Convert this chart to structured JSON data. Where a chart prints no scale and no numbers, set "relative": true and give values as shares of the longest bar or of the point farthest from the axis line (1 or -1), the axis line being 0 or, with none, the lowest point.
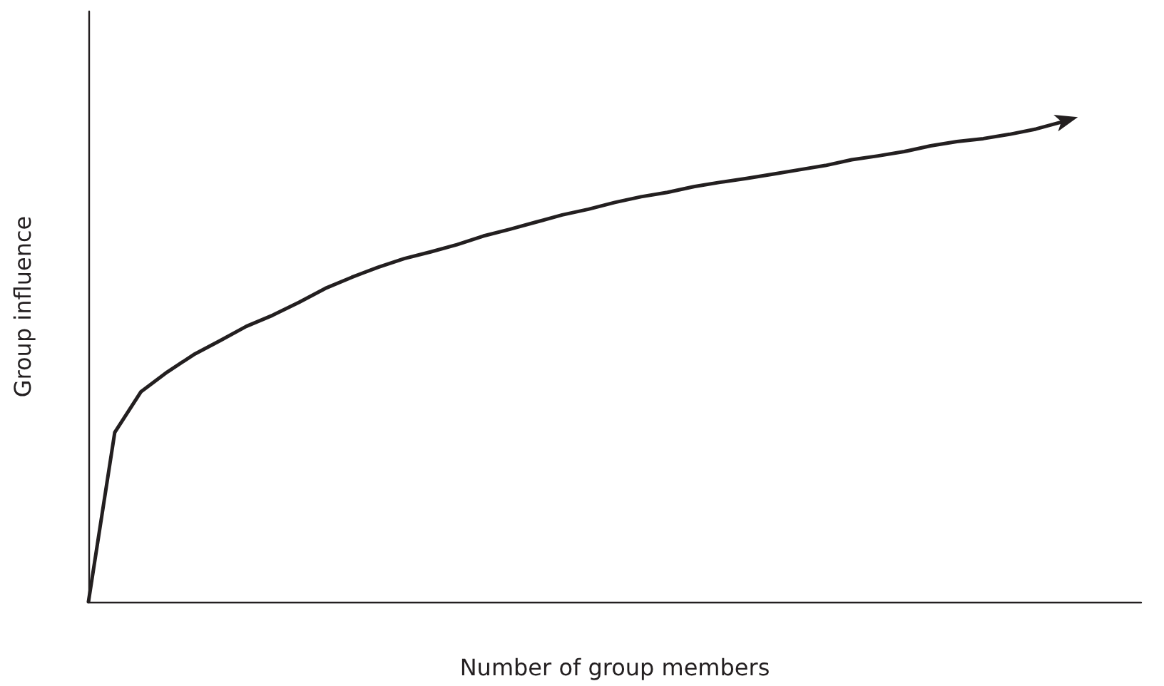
{
  "chart_data": {
    "type": "line",
    "xlabel": "Number of group members",
    "ylabel": "Group influence",
    "relative": true,
    "grid": false,
    "line_style": "solid",
    "categories": [
      null,
      null,
      null,
      null,
      null,
      null,
      null,
      null,
      null,
      null,
      null,
      null,
      null,
      null,
      null,
      null,
      null,
      null,
      null,
      null,
      null,
      null,
      null,
      null,
      null,
      null,
      null,
      null,
      null,
      null,
      null,
      null,
      null,
      null,
      null,
      null,
      null,
      null,
      null,
      null,
      null
    ],
    "series": [
      {
        "color": "#231f20",
        "values": [
          0,
          0.353,
          0.438,
          0.479,
          0.515,
          0.544,
          0.574,
          0.597,
          0.624,
          0.653,
          0.676,
          0.697,
          0.715,
          0.729,
          0.744,
          0.762,
          0.776,
          0.791,
          0.806,
          0.818,
          0.832,
          0.844,
          0.853,
          0.865,
          0.874,
          0.882,
          0.891,
          0.9,
          0.909,
          0.921,
          0.929,
          0.938,
          0.95,
          0.959,
          0.965,
          0.974,
          0.985,
          1,
          null,
          null,
          null
        ]
      }
    ]
  }
}
